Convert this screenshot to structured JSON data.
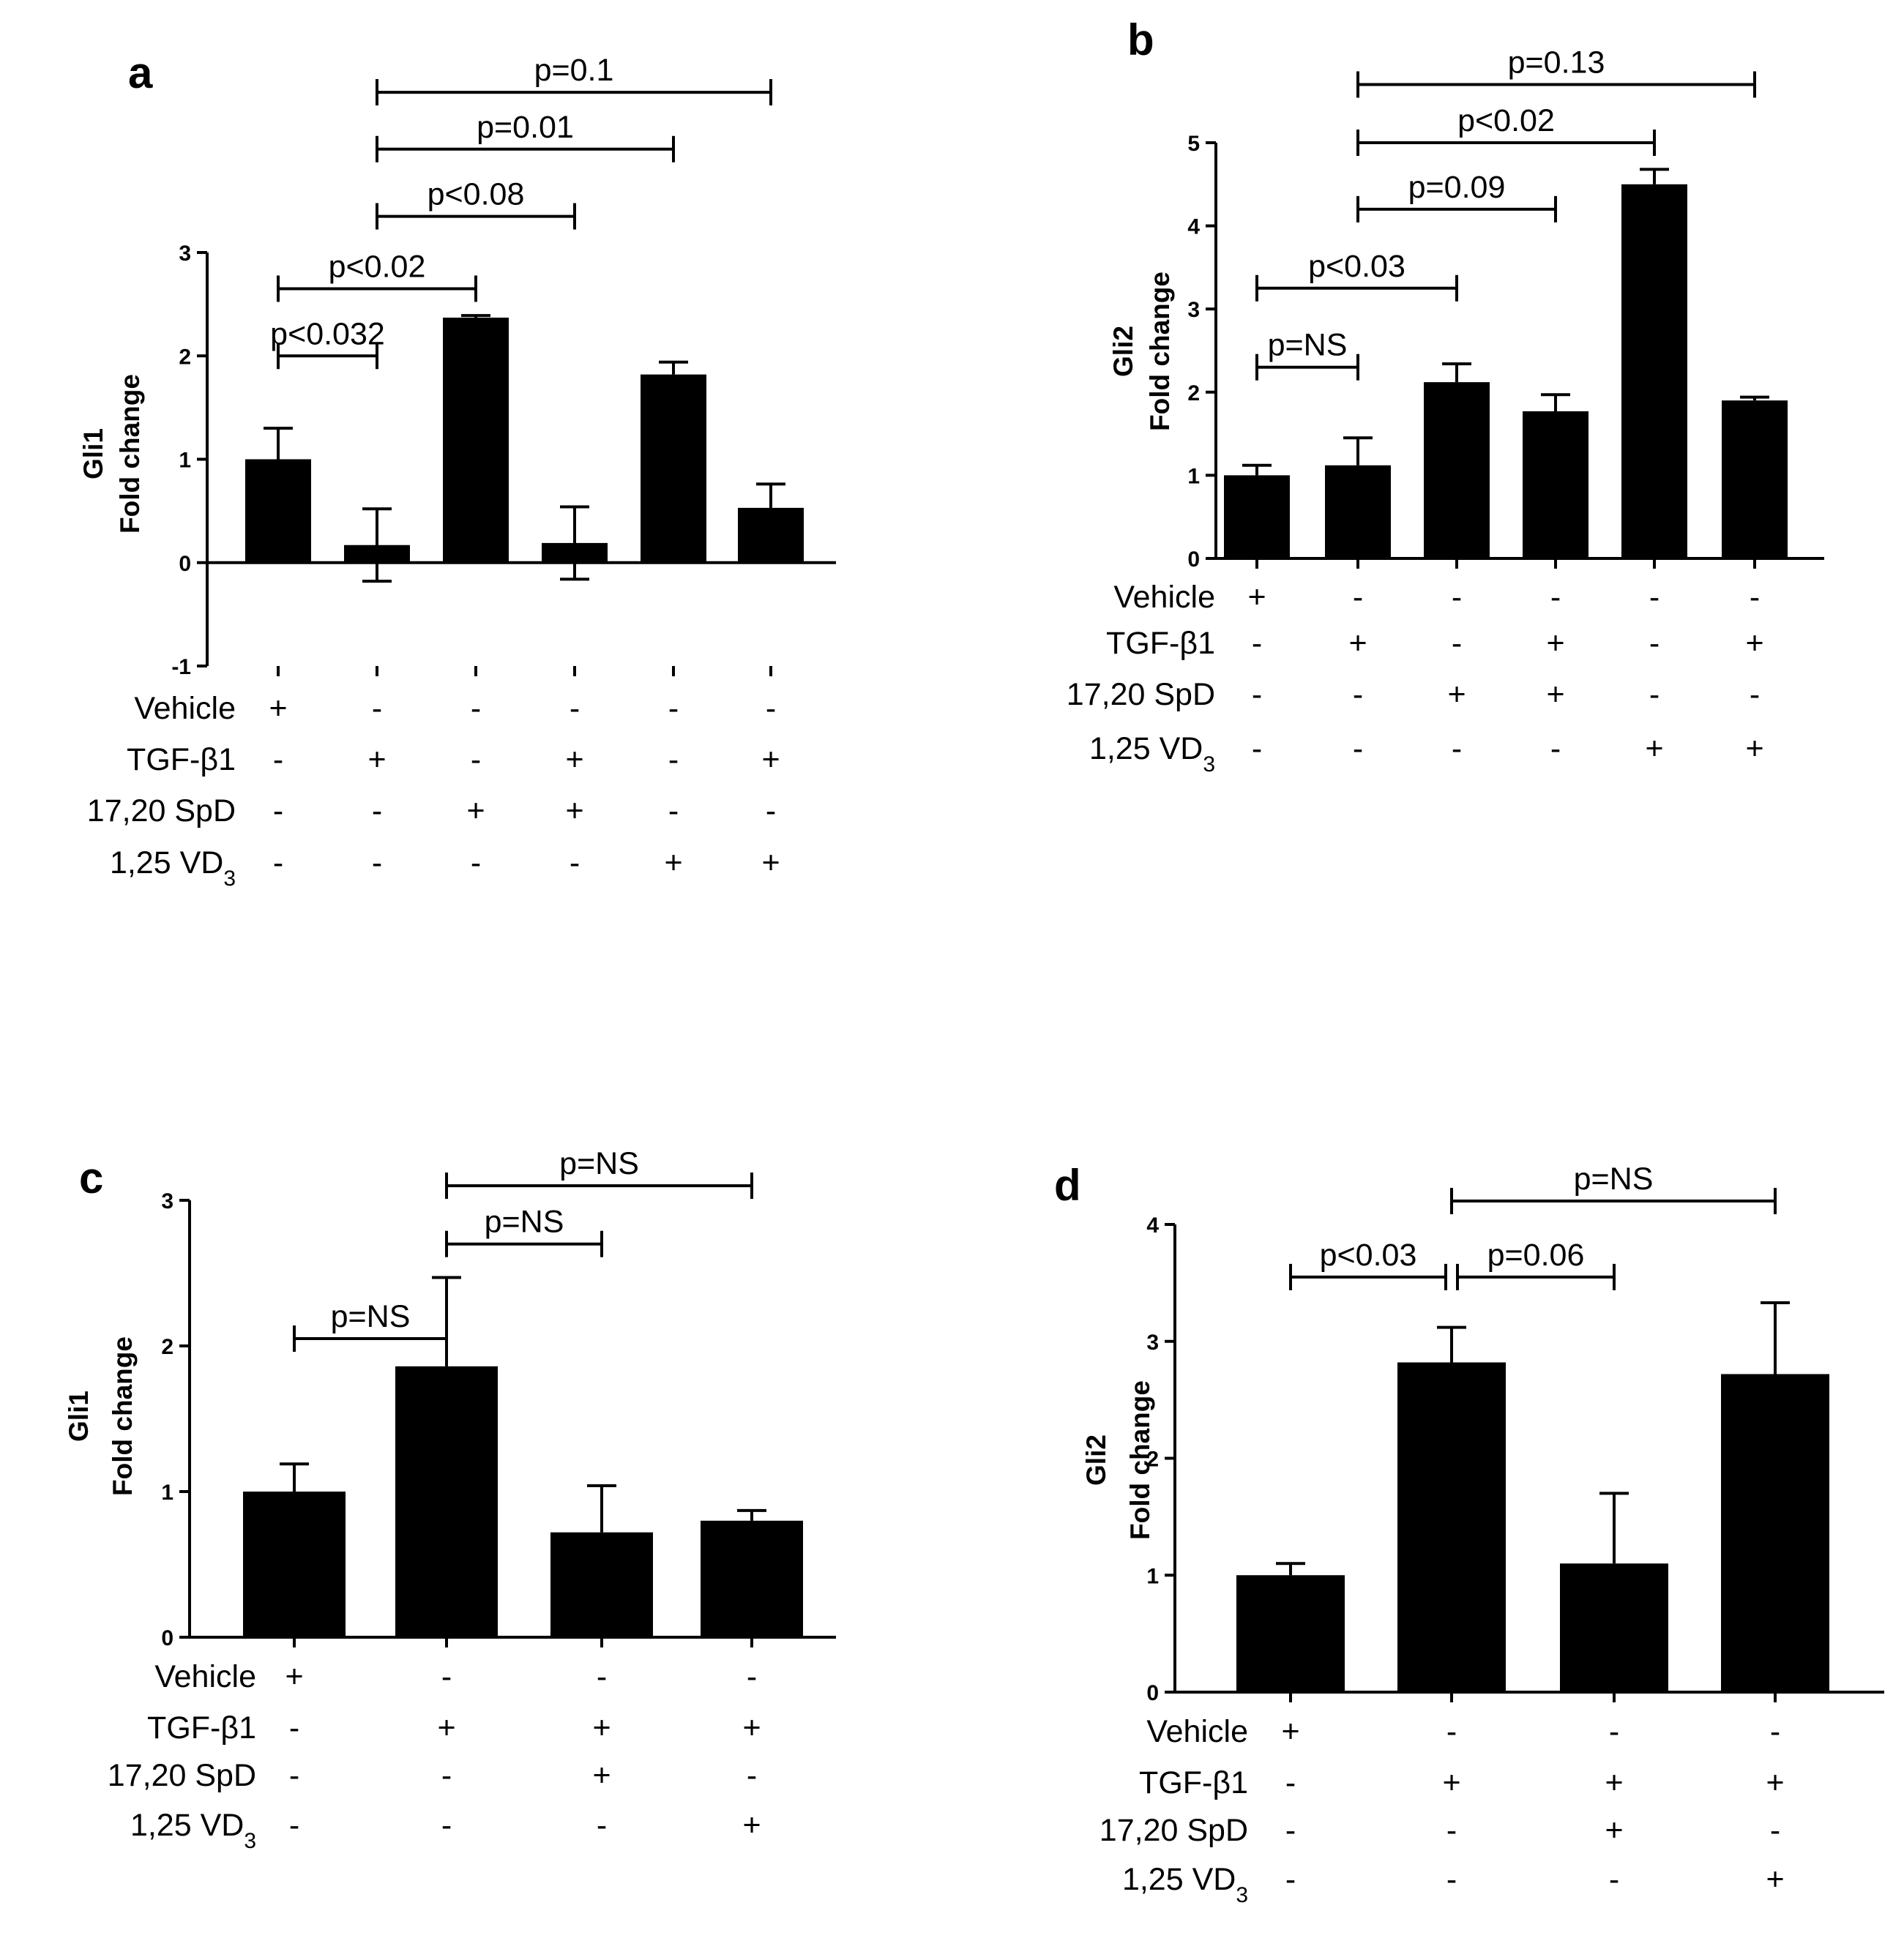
{
  "figure_title": "",
  "chart_data": [
    {
      "type": "bar",
      "panel": "a",
      "title": "",
      "ylabel": [
        "Gli1",
        "Fold change"
      ],
      "xlabel": "",
      "ylim": [
        -1,
        3
      ],
      "yticks": [
        "-1",
        "0",
        "1",
        "2",
        "3"
      ],
      "yticks_values": [
        -1,
        0,
        1,
        2,
        3
      ],
      "values": [
        1.0,
        0.17,
        2.37,
        0.19,
        1.82,
        0.53
      ],
      "errors": [
        0.3,
        0.35,
        0.02,
        0.35,
        0.12,
        0.23
      ],
      "error_dir": [
        "up",
        "both",
        "up",
        "both",
        "up",
        "up"
      ],
      "conditions": [
        {
          "name": "Vehicle",
          "name_sub": "",
          "marks": [
            "+",
            "-",
            "-",
            "-",
            "-",
            "-"
          ]
        },
        {
          "name": "TGF-β1",
          "name_sub": "",
          "marks": [
            "-",
            "+",
            "-",
            "+",
            "-",
            "+"
          ]
        },
        {
          "name": "17,20 SpD",
          "name_sub": "",
          "marks": [
            "-",
            "-",
            "+",
            "+",
            "-",
            "-"
          ]
        },
        {
          "name": "1,25 VD",
          "name_sub": "3",
          "marks": [
            "-",
            "-",
            "-",
            "-",
            "+",
            "+"
          ]
        }
      ],
      "comparisons": [
        {
          "from": 0,
          "to": 1,
          "label": "p<0.032",
          "level": 2.0
        },
        {
          "from": 0,
          "to": 2,
          "label": "p<0.02",
          "level": 2.65
        },
        {
          "from": 1,
          "to": 3,
          "label": "p<0.08",
          "level": 3.35
        },
        {
          "from": 1,
          "to": 4,
          "label": "p=0.01",
          "level": 4.0
        },
        {
          "from": 1,
          "to": 5,
          "label": "p=0.1",
          "level": 4.55
        }
      ]
    },
    {
      "type": "bar",
      "panel": "b",
      "title": "",
      "ylabel": [
        "Gli2",
        "Fold change"
      ],
      "xlabel": "",
      "ylim": [
        0,
        5
      ],
      "yticks": [
        "0",
        "1",
        "2",
        "3",
        "4",
        "5"
      ],
      "yticks_values": [
        0,
        1,
        2,
        3,
        4,
        5
      ],
      "values": [
        1.0,
        1.12,
        2.12,
        1.77,
        4.5,
        1.9
      ],
      "errors": [
        0.12,
        0.33,
        0.22,
        0.2,
        0.18,
        0.04
      ],
      "error_dir": [
        "up",
        "up",
        "up",
        "up",
        "up",
        "up"
      ],
      "conditions": [
        {
          "name": "Vehicle",
          "name_sub": "",
          "marks": [
            "+",
            "-",
            "-",
            "-",
            "-",
            "-"
          ]
        },
        {
          "name": "TGF-β1",
          "name_sub": "",
          "marks": [
            "-",
            "+",
            "-",
            "+",
            "-",
            "+"
          ]
        },
        {
          "name": "17,20 SpD",
          "name_sub": "",
          "marks": [
            "-",
            "-",
            "+",
            "+",
            "-",
            "-"
          ]
        },
        {
          "name": "1,25 VD",
          "name_sub": "3",
          "marks": [
            "-",
            "-",
            "-",
            "-",
            "+",
            "+"
          ]
        }
      ],
      "comparisons": [
        {
          "from": 0,
          "to": 1,
          "label": "p=NS",
          "level": 2.3
        },
        {
          "from": 0,
          "to": 2,
          "label": "p<0.03",
          "level": 3.25
        },
        {
          "from": 1,
          "to": 3,
          "label": "p=0.09",
          "level": 4.2
        },
        {
          "from": 1,
          "to": 4,
          "label": "p<0.02",
          "level": 5.0
        },
        {
          "from": 1,
          "to": 5,
          "label": "p=0.13",
          "level": 5.7
        }
      ]
    },
    {
      "type": "bar",
      "panel": "c",
      "title": "",
      "ylabel": [
        "Gli1",
        "Fold change"
      ],
      "xlabel": "",
      "ylim": [
        0,
        3
      ],
      "yticks": [
        "0",
        "1",
        "2",
        "3"
      ],
      "yticks_values": [
        0,
        1,
        2,
        3
      ],
      "values": [
        1.0,
        1.86,
        0.72,
        0.8
      ],
      "errors": [
        0.19,
        0.61,
        0.32,
        0.07
      ],
      "error_dir": [
        "up",
        "up",
        "up",
        "up"
      ],
      "conditions": [
        {
          "name": "Vehicle",
          "name_sub": "",
          "marks": [
            "+",
            "-",
            "-",
            "-"
          ]
        },
        {
          "name": "TGF-β1",
          "name_sub": "",
          "marks": [
            "-",
            "+",
            "+",
            "+"
          ]
        },
        {
          "name": "17,20 SpD",
          "name_sub": "",
          "marks": [
            "-",
            "-",
            "+",
            "-"
          ]
        },
        {
          "name": "1,25 VD",
          "name_sub": "3",
          "marks": [
            "-",
            "-",
            "-",
            "+"
          ]
        }
      ],
      "comparisons": [
        {
          "from": 0,
          "to": 1,
          "label": "p=NS",
          "level": 2.05
        },
        {
          "from": 1,
          "to": 2,
          "label": "p=NS",
          "level": 2.7
        },
        {
          "from": 1,
          "to": 3,
          "label": "p=NS",
          "level": 3.1
        }
      ]
    },
    {
      "type": "bar",
      "panel": "d",
      "title": "",
      "ylabel": [
        "Gli2",
        "Fold change"
      ],
      "xlabel": "",
      "ylim": [
        0,
        4
      ],
      "yticks": [
        "0",
        "1",
        "2",
        "3",
        "4"
      ],
      "yticks_values": [
        0,
        1,
        2,
        3,
        4
      ],
      "values": [
        1.0,
        2.82,
        1.1,
        2.72
      ],
      "errors": [
        0.1,
        0.3,
        0.6,
        0.61
      ],
      "error_dir": [
        "up",
        "up",
        "up",
        "up"
      ],
      "conditions": [
        {
          "name": "Vehicle",
          "name_sub": "",
          "marks": [
            "+",
            "-",
            "-",
            "-"
          ]
        },
        {
          "name": "TGF-β1",
          "name_sub": "",
          "marks": [
            "-",
            "+",
            "+",
            "+"
          ]
        },
        {
          "name": "17,20 SpD",
          "name_sub": "",
          "marks": [
            "-",
            "-",
            "+",
            "-"
          ]
        },
        {
          "name": "1,25 VD",
          "name_sub": "3",
          "marks": [
            "-",
            "-",
            "-",
            "+"
          ]
        }
      ],
      "comparisons": [
        {
          "from": 0,
          "to": 1,
          "label": "p<0.03",
          "level": 3.55
        },
        {
          "from": 1,
          "to": 2,
          "label": "p=0.06",
          "level": 3.55
        },
        {
          "from": 1,
          "to": 3,
          "label": "p=NS",
          "level": 4.2
        }
      ]
    }
  ]
}
